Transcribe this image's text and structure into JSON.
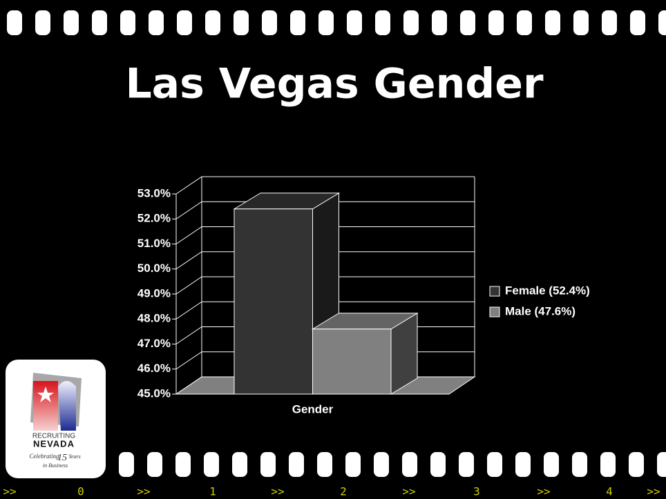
{
  "chart_data": {
    "type": "bar3d",
    "title": "Las Vegas Gender",
    "categories": [
      "Gender"
    ],
    "series": [
      {
        "name": "Female (52.4%)",
        "color": "#333333",
        "values": [
          52.4
        ]
      },
      {
        "name": "Male (47.6%)",
        "color": "#808080",
        "values": [
          47.6
        ]
      }
    ],
    "ylim": [
      45,
      53
    ],
    "yticks": [
      {
        "value": 45,
        "label": "45.0%"
      },
      {
        "value": 46,
        "label": "46.0%"
      },
      {
        "value": 47,
        "label": "47.0%"
      },
      {
        "value": 48,
        "label": "48.0%"
      },
      {
        "value": 49,
        "label": "49.0%"
      },
      {
        "value": 50,
        "label": "50.0%"
      },
      {
        "value": 51,
        "label": "51.0%"
      },
      {
        "value": 52,
        "label": "52.0%"
      },
      {
        "value": 53,
        "label": "53.0%"
      }
    ],
    "grid": true,
    "legend": "right"
  },
  "logo": {
    "line1": "RECRUITING",
    "line2": "NEVADA",
    "celebrating": "Celebrating",
    "years_number": "15",
    "years": "Years",
    "business": "in Business"
  },
  "nav": [
    ">>",
    "0",
    ">>",
    "1",
    ">>",
    "2",
    ">>",
    "3",
    ">>",
    "4",
    ">>"
  ]
}
